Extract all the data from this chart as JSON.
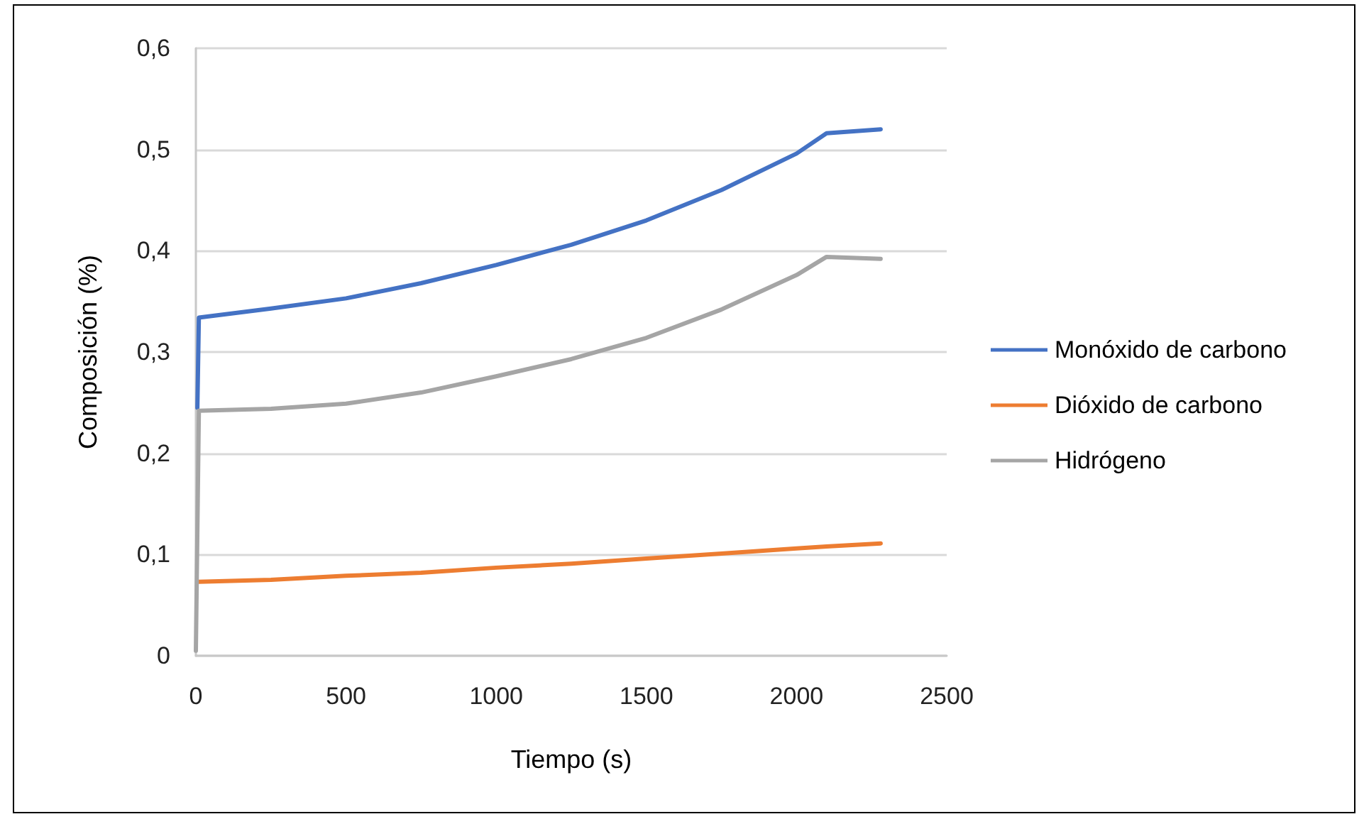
{
  "chart_data": {
    "type": "line",
    "xlabel": "Tiempo (s)",
    "ylabel": "Composición (%)",
    "xlim": [
      0,
      2500
    ],
    "xticks": [
      0,
      500,
      1000,
      1500,
      2000,
      2500
    ],
    "ylim": [
      0,
      0.6
    ],
    "yticks": [
      {
        "value": 0,
        "label": "0"
      },
      {
        "value": 0.1,
        "label": "0,1"
      },
      {
        "value": 0.2,
        "label": "0,2"
      },
      {
        "value": 0.3,
        "label": "0,3"
      },
      {
        "value": 0.4,
        "label": "0,4"
      },
      {
        "value": 0.5,
        "label": "0,5"
      },
      {
        "value": 0.6,
        "label": "0,6"
      }
    ],
    "series": [
      {
        "name": "Monóxido de carbono",
        "color": "#4472c4",
        "x": [
          5,
          10,
          250,
          500,
          750,
          1000,
          1250,
          1500,
          1750,
          2000,
          2100,
          2280
        ],
        "values": [
          0.245,
          0.334,
          0.343,
          0.353,
          0.368,
          0.386,
          0.406,
          0.43,
          0.46,
          0.496,
          0.516,
          0.52
        ]
      },
      {
        "name": "Dióxido de carbono",
        "color": "#ed7d31",
        "x": [
          10,
          250,
          500,
          750,
          1000,
          1250,
          1500,
          1750,
          2000,
          2100,
          2280
        ],
        "values": [
          0.073,
          0.075,
          0.079,
          0.082,
          0.087,
          0.091,
          0.096,
          0.101,
          0.106,
          0.108,
          0.111
        ]
      },
      {
        "name": "Hidrógeno",
        "color": "#a5a5a5",
        "x": [
          0,
          10,
          250,
          500,
          750,
          1000,
          1250,
          1500,
          1750,
          2000,
          2100,
          2280
        ],
        "values": [
          0.005,
          0.242,
          0.244,
          0.249,
          0.26,
          0.276,
          0.293,
          0.314,
          0.342,
          0.376,
          0.394,
          0.392
        ]
      }
    ],
    "grid": "y",
    "legend": "right",
    "marker": "none",
    "line_style": "solid"
  }
}
